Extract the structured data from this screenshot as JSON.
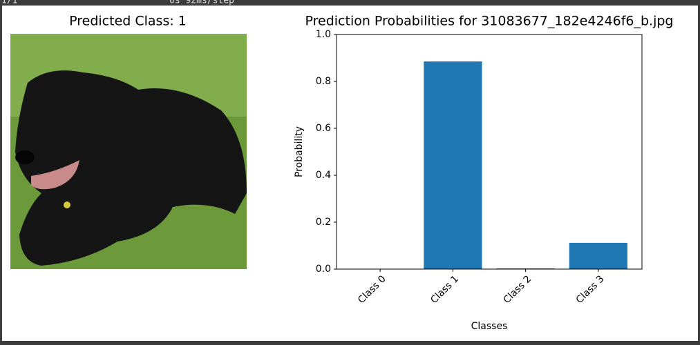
{
  "header": {
    "progress": "1/1",
    "timing": "0s 92ms/step"
  },
  "image_panel": {
    "title": "Predicted Class: 1"
  },
  "chart_data": {
    "type": "bar",
    "title": "Prediction Probabilities for 31083677_182e4246f6_b.jpg",
    "x_label": "Classes",
    "y_label": "Probability",
    "categories": [
      "Class 0",
      "Class 1",
      "Class 2",
      "Class 3"
    ],
    "values": [
      0.0,
      0.885,
      0.003,
      0.112
    ],
    "color": "#1f77b4",
    "ylim": [
      0,
      1
    ],
    "yticks": [
      {
        "value": 0,
        "label": "0.0"
      },
      0.2,
      0.4,
      0.6,
      0.8,
      {
        "value": 1,
        "label": "1.0"
      }
    ]
  }
}
